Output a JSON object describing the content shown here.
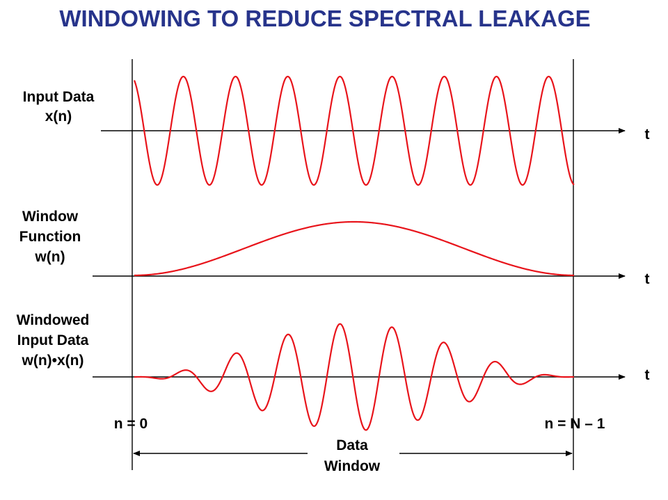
{
  "title": "WINDOWING TO REDUCE SPECTRAL LEAKAGE",
  "colors": {
    "title": "#27348B",
    "signal": "#E8141B",
    "axis": "#000000"
  },
  "panels": [
    {
      "id": "input",
      "label_lines": [
        "Input Data",
        "x(n)"
      ],
      "axis_label": "t",
      "waveform": "sinusoid"
    },
    {
      "id": "window",
      "label_lines": [
        "Window",
        "Function",
        "w(n)"
      ],
      "axis_label": "t",
      "waveform": "window"
    },
    {
      "id": "windowed",
      "label_lines": [
        "Windowed",
        "Input Data",
        "w(n)•x(n)"
      ],
      "axis_label": "t",
      "waveform": "product"
    }
  ],
  "markers": {
    "start": "n = 0",
    "end": "n = N – 1"
  },
  "data_window": {
    "label_lines": [
      "Data",
      "Window"
    ]
  }
}
